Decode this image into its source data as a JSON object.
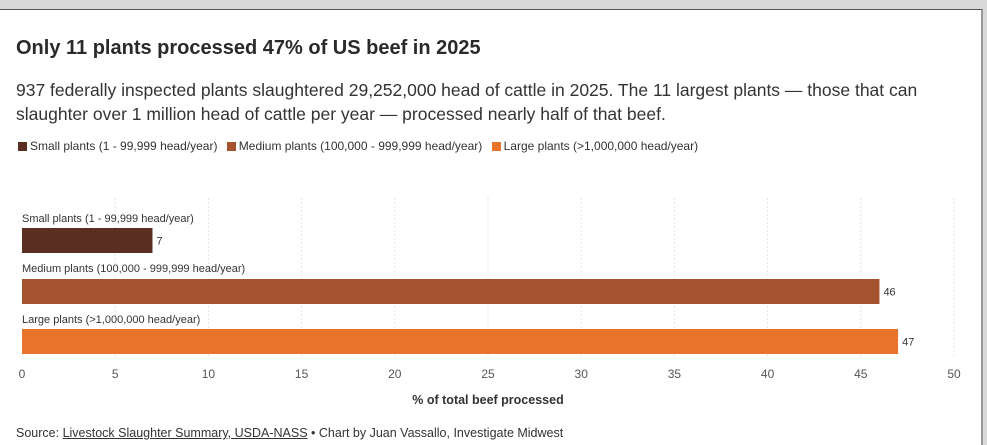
{
  "title": "Only 11 plants processed 47% of US beef in 2025",
  "subtitle": "937 federally inspected plants slaughtered 29,252,000 head of cattle in 2025. The 11 largest plants — those that can slaughter over 1 million head of cattle per year — processed nearly half of that beef.",
  "legend": [
    {
      "label": "Small plants (1 - 99,999 head/year)",
      "color": "#5a2f22"
    },
    {
      "label": "Medium plants (100,000 - 999,999 head/year)",
      "color": "#a5522e"
    },
    {
      "label": "Large plants (>1,000,000 head/year)",
      "color": "#e8742c"
    }
  ],
  "chart_data": {
    "type": "bar",
    "orientation": "horizontal",
    "categories": [
      "Small plants (1 - 99,999 head/year)",
      "Medium plants (100,000 - 999,999 head/year)",
      "Large plants (>1,000,000 head/year)"
    ],
    "values": [
      7,
      46,
      47
    ],
    "colors": [
      "#5a2f22",
      "#a5522e",
      "#e8742c"
    ],
    "xlabel": "% of total beef processed",
    "ylabel": "",
    "xlim": [
      0,
      50
    ],
    "xticks": [
      0,
      5,
      10,
      15,
      20,
      25,
      30,
      35,
      40,
      45,
      50
    ],
    "grid": true,
    "legend_position": "top-left"
  },
  "source": {
    "prefix": "Source: ",
    "link": "Livestock Slaughter Summary, USDA-NASS",
    "suffix": " • Chart by Juan Vassallo, Investigate Midwest"
  }
}
